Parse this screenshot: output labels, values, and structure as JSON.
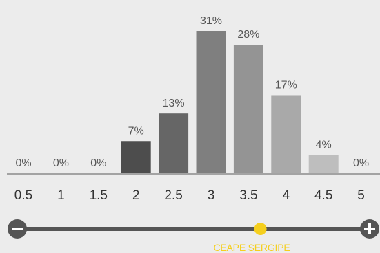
{
  "chart_data": {
    "type": "bar",
    "categories": [
      "0.5",
      "1",
      "1.5",
      "2",
      "2.5",
      "3",
      "3.5",
      "4",
      "4.5",
      "5"
    ],
    "values": [
      0,
      0,
      0,
      7,
      13,
      31,
      28,
      17,
      4,
      0
    ],
    "value_labels": [
      "0%",
      "0%",
      "0%",
      "7%",
      "13%",
      "31%",
      "28%",
      "17%",
      "4%",
      "0%"
    ],
    "bar_colors": [
      "#4d4d4d",
      "#4d4d4d",
      "#4d4d4d",
      "#4d4d4d",
      "#666666",
      "#7f7f7f",
      "#949494",
      "#a9a9a9",
      "#bebebe",
      "#bebebe"
    ],
    "ylim": [
      0,
      31
    ],
    "title": "",
    "xlabel": "",
    "ylabel": "",
    "grid": false,
    "legend": "none"
  },
  "slider": {
    "label": "CEAPE SERGIPE",
    "value": 0.69,
    "minus_icon": "minus-icon",
    "plus_icon": "plus-icon",
    "handle_color": "#f5cf1e",
    "track_color": "#555555"
  }
}
